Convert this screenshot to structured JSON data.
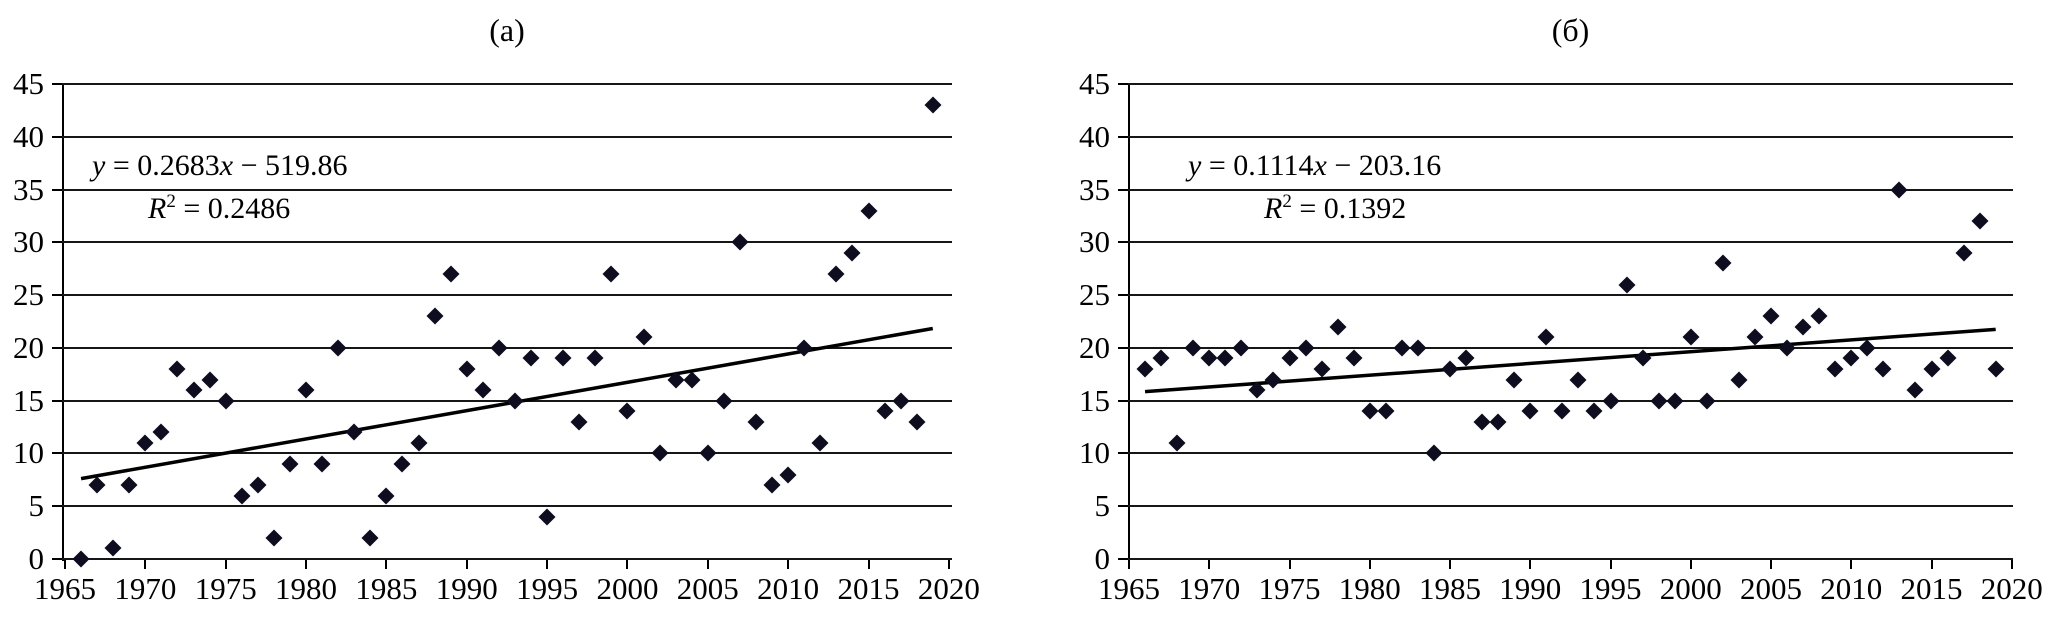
{
  "figure": {
    "background": "#ffffff",
    "grid_color": "#161616",
    "marker_color": "#0d0d1f",
    "trend_color": "#000000"
  },
  "chart_data": [
    {
      "type": "scatter",
      "title": "(а)",
      "panel_label": "(а)",
      "marker": "diamond",
      "grid": "horizontal",
      "legend": "none",
      "xlim": [
        1965,
        2020
      ],
      "ylim": [
        0,
        45
      ],
      "x_ticks": [
        1965,
        1970,
        1975,
        1980,
        1985,
        1990,
        1995,
        2000,
        2005,
        2010,
        2015,
        2020
      ],
      "y_ticks": [
        0,
        5,
        10,
        15,
        20,
        25,
        30,
        35,
        40,
        45
      ],
      "x": [
        1966,
        1967,
        1968,
        1969,
        1970,
        1971,
        1972,
        1973,
        1974,
        1975,
        1976,
        1977,
        1978,
        1979,
        1980,
        1981,
        1982,
        1983,
        1984,
        1985,
        1986,
        1987,
        1988,
        1989,
        1990,
        1991,
        1992,
        1993,
        1994,
        1995,
        1996,
        1997,
        1998,
        1999,
        2000,
        2001,
        2002,
        2003,
        2004,
        2005,
        2006,
        2007,
        2008,
        2009,
        2010,
        2011,
        2012,
        2013,
        2014,
        2015,
        2016,
        2017,
        2018,
        2019
      ],
      "y": [
        0,
        7,
        1,
        7,
        11,
        12,
        18,
        16,
        17,
        15,
        6,
        7,
        2,
        9,
        16,
        9,
        20,
        12,
        2,
        6,
        9,
        11,
        23,
        27,
        18,
        16,
        20,
        15,
        19,
        4,
        19,
        13,
        19,
        27,
        14,
        21,
        10,
        17,
        17,
        10,
        15,
        30,
        13,
        7,
        8,
        20,
        11,
        27,
        29,
        33,
        14,
        15,
        13,
        43
      ],
      "trendline": {
        "slope": 0.2683,
        "intercept": -519.86,
        "x_start": 1966,
        "x_end": 2019
      },
      "annotation": {
        "equation": {
          "var_y": "y",
          "rel": " = ",
          "coef": "0.2683",
          "var_x": "x",
          "op": " − ",
          "const": "519.86"
        },
        "r2": {
          "base": "R",
          "sup": "2",
          "rest": " = 0.2486"
        }
      }
    },
    {
      "type": "scatter",
      "title": "(б)",
      "panel_label": "(б)",
      "marker": "diamond",
      "grid": "horizontal",
      "legend": "none",
      "xlim": [
        1965,
        2020
      ],
      "ylim": [
        0,
        45
      ],
      "x_ticks": [
        1965,
        1970,
        1975,
        1980,
        1985,
        1990,
        1995,
        2000,
        2005,
        2010,
        2015,
        2020
      ],
      "y_ticks": [
        0,
        5,
        10,
        15,
        20,
        25,
        30,
        35,
        40,
        45
      ],
      "x": [
        1966,
        1967,
        1968,
        1969,
        1970,
        1971,
        1972,
        1973,
        1974,
        1975,
        1976,
        1977,
        1978,
        1979,
        1980,
        1981,
        1982,
        1983,
        1984,
        1985,
        1986,
        1987,
        1988,
        1989,
        1990,
        1991,
        1992,
        1993,
        1994,
        1995,
        1996,
        1997,
        1998,
        1999,
        2000,
        2001,
        2002,
        2003,
        2004,
        2005,
        2006,
        2007,
        2008,
        2009,
        2010,
        2011,
        2012,
        2013,
        2014,
        2015,
        2016,
        2017,
        2018,
        2019
      ],
      "y": [
        18,
        19,
        11,
        20,
        19,
        19,
        20,
        16,
        17,
        19,
        20,
        18,
        22,
        19,
        14,
        14,
        20,
        20,
        10,
        18,
        19,
        13,
        13,
        17,
        14,
        21,
        14,
        17,
        14,
        15,
        26,
        19,
        15,
        15,
        21,
        15,
        28,
        17,
        21,
        23,
        20,
        22,
        23,
        18,
        19,
        20,
        18,
        35,
        16,
        18,
        19,
        29,
        32,
        18
      ],
      "trendline": {
        "slope": 0.1114,
        "intercept": -203.16,
        "x_start": 1966,
        "x_end": 2019
      },
      "annotation": {
        "equation": {
          "var_y": "y",
          "rel": " = ",
          "coef": "0.1114",
          "var_x": "x",
          "op": " − ",
          "const": "203.16"
        },
        "r2": {
          "base": "R",
          "sup": "2",
          "rest": " = 0.1392"
        }
      }
    }
  ]
}
